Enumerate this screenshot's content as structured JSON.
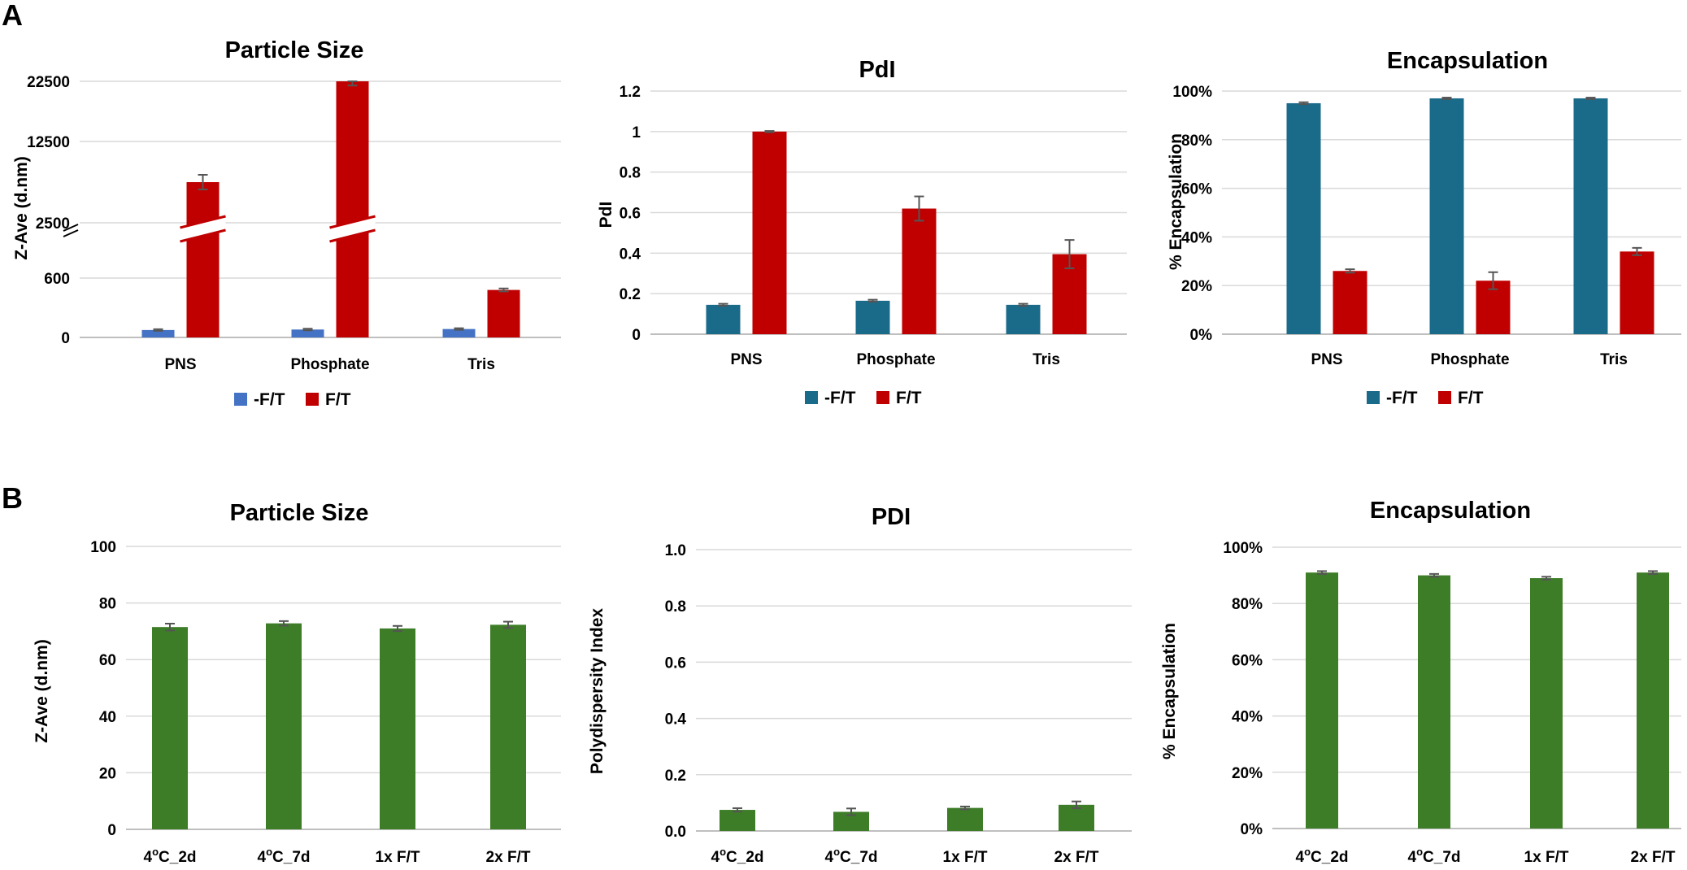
{
  "panels": [
    {
      "letter": "A"
    },
    {
      "letter": "B"
    }
  ],
  "chart_data": [
    {
      "type": "bar",
      "panel": "A",
      "title": "Particle Size",
      "xlabel": "",
      "ylabel": "Z-Ave (d.nm)",
      "categories": [
        "PNS",
        "Phosphate",
        "Tris"
      ],
      "axis_break": true,
      "yticks": [
        "0",
        "600",
        "2500",
        "12500",
        "22500"
      ],
      "grid": true,
      "legend": "bottom",
      "colors": [
        "#4472c4",
        "#c00000"
      ],
      "series": [
        {
          "name": "-F/T",
          "values": [
            75,
            80,
            85
          ],
          "errors": [
            8,
            8,
            8
          ]
        },
        {
          "name": "F/T",
          "values": [
            7500,
            22500,
            480
          ],
          "errors": [
            900,
            700,
            15
          ]
        }
      ]
    },
    {
      "type": "bar",
      "panel": "A",
      "title": "PdI",
      "xlabel": "",
      "ylabel": "PdI",
      "categories": [
        "PNS",
        "Phosphate",
        "Tris"
      ],
      "ylim": [
        0,
        1.2
      ],
      "yticks": [
        "0",
        "0.2",
        "0.4",
        "0.6",
        "0.8",
        "1",
        "1.2"
      ],
      "grid": true,
      "legend": "bottom",
      "colors": [
        "#1a6a8a",
        "#c00000"
      ],
      "series": [
        {
          "name": "-F/T",
          "values": [
            0.145,
            0.165,
            0.145
          ],
          "errors": [
            0.005,
            0.005,
            0.005
          ]
        },
        {
          "name": "F/T",
          "values": [
            1.0,
            0.62,
            0.395
          ],
          "errors": [
            0.003,
            0.06,
            0.07
          ]
        }
      ]
    },
    {
      "type": "bar",
      "panel": "A",
      "title": "Encapsulation",
      "xlabel": "",
      "ylabel": "% Encapsulation",
      "categories": [
        "PNS",
        "Phosphate",
        "Tris"
      ],
      "ylim": [
        0,
        100
      ],
      "yticks": [
        "0%",
        "20%",
        "40%",
        "60%",
        "80%",
        "100%"
      ],
      "grid": true,
      "legend": "bottom",
      "colors": [
        "#1a6a8a",
        "#c00000"
      ],
      "series": [
        {
          "name": "-F/T",
          "values": [
            95,
            97,
            97
          ],
          "errors": [
            0.4,
            0.3,
            0.3
          ]
        },
        {
          "name": "F/T",
          "values": [
            26,
            22,
            34
          ],
          "errors": [
            0.7,
            3.5,
            1.5
          ]
        }
      ]
    },
    {
      "type": "bar",
      "panel": "B",
      "title": "Particle Size",
      "xlabel": "",
      "ylabel": "Z-Ave (d.nm)",
      "categories": [
        "4ºC_2d",
        "4ºC_7d",
        "1x F/T",
        "2x F/T"
      ],
      "ylim": [
        0,
        100
      ],
      "yticks": [
        "0",
        "20",
        "40",
        "60",
        "80",
        "100"
      ],
      "grid": true,
      "colors": [
        "#3e7d27"
      ],
      "series": [
        {
          "values": [
            71.5,
            72.8,
            71,
            72.3
          ],
          "errors": [
            1.2,
            0.8,
            0.9,
            1.1
          ]
        }
      ]
    },
    {
      "type": "bar",
      "panel": "B",
      "title": "PDI",
      "xlabel": "",
      "ylabel": "Polydispersity Index",
      "categories": [
        "4ºC_2d",
        "4ºC_7d",
        "1x F/T",
        "2x F/T"
      ],
      "ylim": [
        0,
        1.0
      ],
      "yticks": [
        "0.0",
        "0.2",
        "0.4",
        "0.6",
        "0.8",
        "1.0"
      ],
      "grid": true,
      "colors": [
        "#3e7d27"
      ],
      "series": [
        {
          "values": [
            0.075,
            0.068,
            0.082,
            0.093
          ],
          "errors": [
            0.006,
            0.012,
            0.005,
            0.012
          ]
        }
      ]
    },
    {
      "type": "bar",
      "panel": "B",
      "title": "Encapsulation",
      "xlabel": "",
      "ylabel": "% Encapsulation",
      "categories": [
        "4ºC_2d",
        "4ºC_7d",
        "1x F/T",
        "2x F/T"
      ],
      "ylim": [
        0,
        100
      ],
      "yticks": [
        "0%",
        "20%",
        "40%",
        "60%",
        "80%",
        "100%"
      ],
      "grid": true,
      "colors": [
        "#3e7d27"
      ],
      "series": [
        {
          "values": [
            91,
            90,
            89,
            91
          ],
          "errors": [
            0.5,
            0.5,
            0.5,
            0.5
          ]
        }
      ]
    }
  ]
}
